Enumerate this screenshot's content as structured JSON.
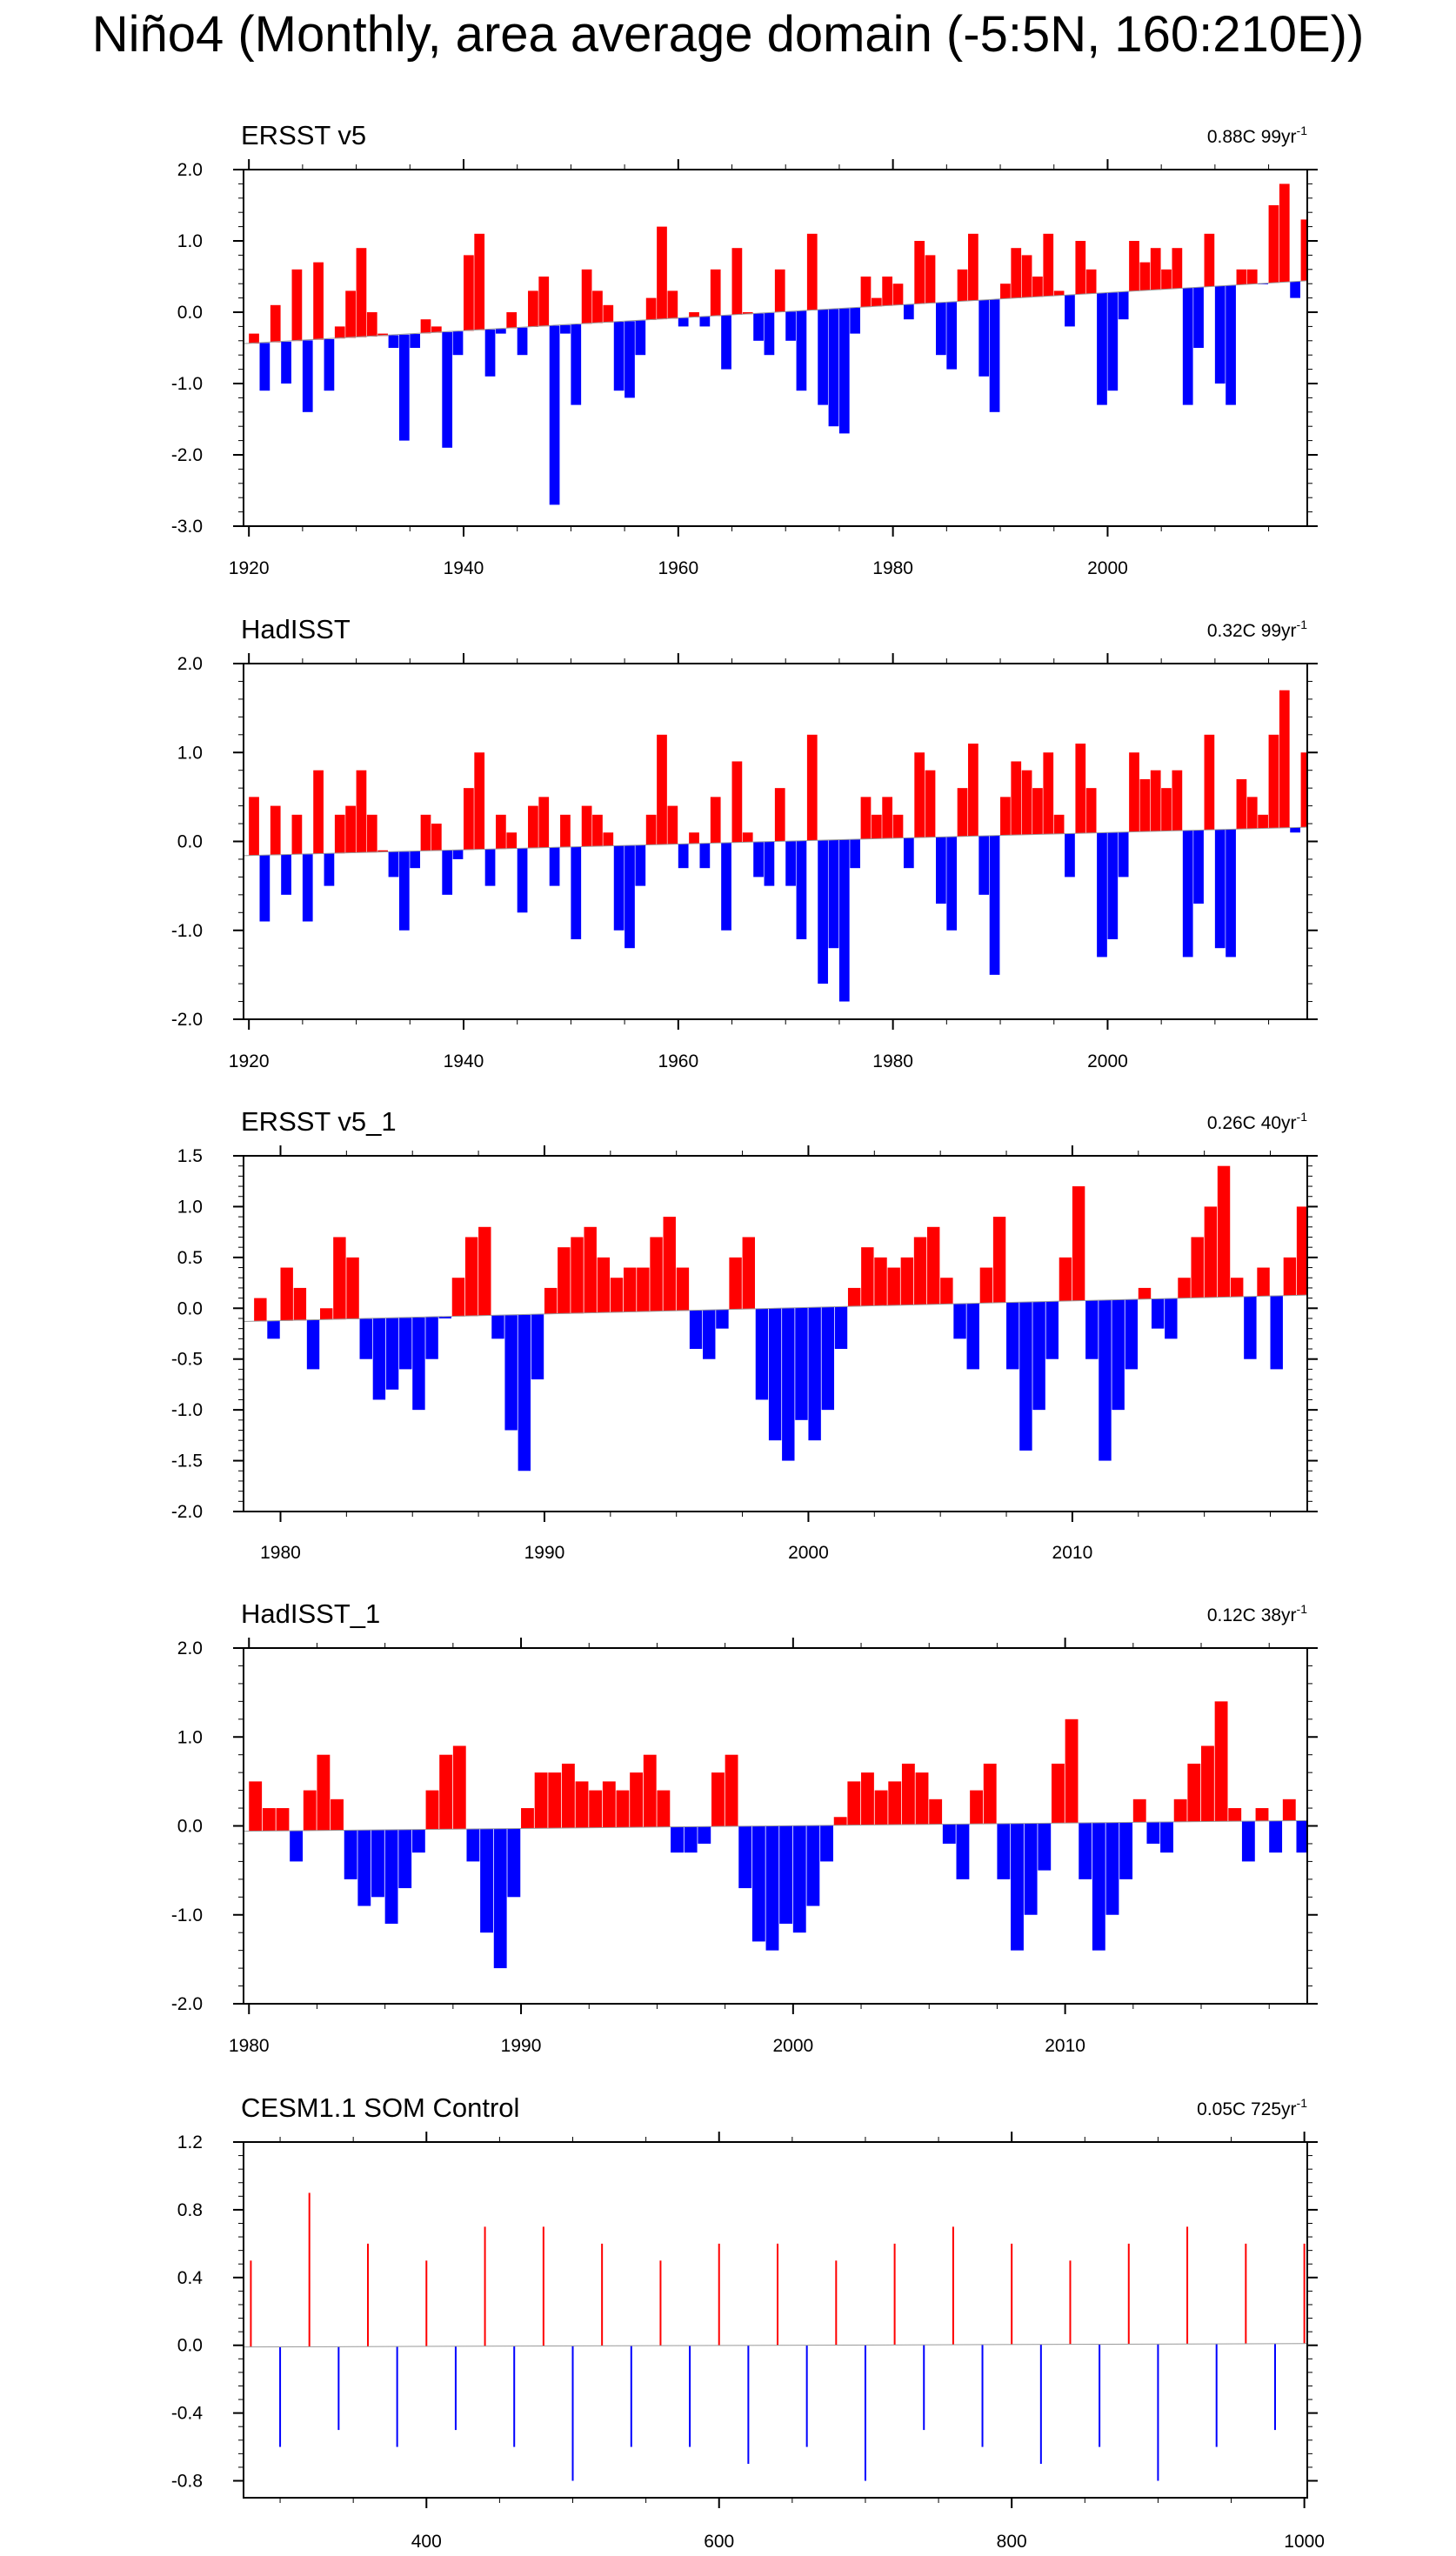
{
  "page": {
    "title": "Niño4 (Monthly, area average domain (-5:5N, 160:210E))"
  },
  "chart_data": [
    {
      "type": "area",
      "title": "ERSST v5",
      "trend_value": "0.88C",
      "trend_period": "99yr",
      "trend_exponent": "-1",
      "xlim": [
        1919.5,
        2018.6
      ],
      "ylim": [
        -3.0,
        2.0
      ],
      "y_ticks": [
        -3.0,
        -2.0,
        -1.0,
        0.0,
        1.0,
        2.0
      ],
      "y_tick_labels": [
        "-3.0",
        "-2.0",
        "-1.0",
        "0.0",
        "1.0",
        "2.0"
      ],
      "x_ticks": [
        1920,
        1940,
        1960,
        1980,
        2000
      ],
      "x_tick_labels": [
        "1920",
        "1940",
        "1960",
        "1980",
        "2000"
      ],
      "trend_line": [
        -0.44,
        0.44
      ],
      "above_color": "#ff0000",
      "below_color": "#0000ff",
      "series": [
        {
          "name": "anomaly",
          "x": [
            1920,
            1921,
            1922,
            1923,
            1924,
            1925,
            1926,
            1927,
            1928,
            1929,
            1930,
            1931,
            1932,
            1933,
            1934,
            1935,
            1936,
            1937,
            1938,
            1939,
            1940,
            1941,
            1942,
            1943,
            1944,
            1945,
            1946,
            1947,
            1948,
            1949,
            1950,
            1951,
            1952,
            1953,
            1954,
            1955,
            1956,
            1957,
            1958,
            1959,
            1960,
            1961,
            1962,
            1963,
            1964,
            1965,
            1966,
            1967,
            1968,
            1969,
            1970,
            1971,
            1972,
            1973,
            1974,
            1975,
            1976,
            1977,
            1978,
            1979,
            1980,
            1981,
            1982,
            1983,
            1984,
            1985,
            1986,
            1987,
            1988,
            1989,
            1990,
            1991,
            1992,
            1993,
            1994,
            1995,
            1996,
            1997,
            1998,
            1999,
            2000,
            2001,
            2002,
            2003,
            2004,
            2005,
            2006,
            2007,
            2008,
            2009,
            2010,
            2011,
            2012,
            2013,
            2014,
            2015,
            2016,
            2017,
            2018
          ],
          "values": [
            -0.3,
            -1.1,
            0.1,
            -1.0,
            0.6,
            -1.4,
            0.7,
            -1.1,
            -0.2,
            0.3,
            0.9,
            0.0,
            -0.3,
            -0.5,
            -1.8,
            -0.5,
            -0.1,
            -0.2,
            -1.9,
            -0.6,
            0.8,
            1.1,
            -0.9,
            -0.3,
            0.0,
            -0.6,
            0.3,
            0.5,
            -2.7,
            -0.3,
            -1.3,
            0.6,
            0.3,
            0.1,
            -1.1,
            -1.2,
            -0.6,
            0.2,
            1.2,
            0.3,
            -0.2,
            0.0,
            -0.2,
            0.6,
            -0.8,
            0.9,
            0.0,
            -0.4,
            -0.6,
            0.6,
            -0.4,
            -1.1,
            1.1,
            -1.3,
            -1.6,
            -1.7,
            -0.3,
            0.5,
            0.2,
            0.5,
            0.4,
            -0.1,
            1.0,
            0.8,
            -0.6,
            -0.8,
            0.6,
            1.1,
            -0.9,
            -1.4,
            0.4,
            0.9,
            0.8,
            0.5,
            1.1,
            0.3,
            -0.2,
            1.0,
            0.6,
            -1.3,
            -1.1,
            -0.1,
            1.0,
            0.7,
            0.9,
            0.6,
            0.9,
            -1.3,
            -0.5,
            1.1,
            -1.0,
            -1.3,
            0.6,
            0.6,
            0.4,
            1.5,
            1.8,
            0.2,
            1.3
          ]
        }
      ]
    },
    {
      "type": "area",
      "title": "HadISST",
      "trend_value": "0.32C",
      "trend_period": "99yr",
      "trend_exponent": "-1",
      "xlim": [
        1919.5,
        2018.6
      ],
      "ylim": [
        -2.0,
        2.0
      ],
      "y_ticks": [
        -2.0,
        -1.0,
        0.0,
        1.0,
        2.0
      ],
      "y_tick_labels": [
        "-2.0",
        "-1.0",
        "0.0",
        "1.0",
        "2.0"
      ],
      "x_ticks": [
        1920,
        1940,
        1960,
        1980,
        2000
      ],
      "x_tick_labels": [
        "1920",
        "1940",
        "1960",
        "1980",
        "2000"
      ],
      "trend_line": [
        -0.16,
        0.16
      ],
      "above_color": "#ff0000",
      "below_color": "#0000ff",
      "series": [
        {
          "name": "anomaly",
          "x": [
            1920,
            1921,
            1922,
            1923,
            1924,
            1925,
            1926,
            1927,
            1928,
            1929,
            1930,
            1931,
            1932,
            1933,
            1934,
            1935,
            1936,
            1937,
            1938,
            1939,
            1940,
            1941,
            1942,
            1943,
            1944,
            1945,
            1946,
            1947,
            1948,
            1949,
            1950,
            1951,
            1952,
            1953,
            1954,
            1955,
            1956,
            1957,
            1958,
            1959,
            1960,
            1961,
            1962,
            1963,
            1964,
            1965,
            1966,
            1967,
            1968,
            1969,
            1970,
            1971,
            1972,
            1973,
            1974,
            1975,
            1976,
            1977,
            1978,
            1979,
            1980,
            1981,
            1982,
            1983,
            1984,
            1985,
            1986,
            1987,
            1988,
            1989,
            1990,
            1991,
            1992,
            1993,
            1994,
            1995,
            1996,
            1997,
            1998,
            1999,
            2000,
            2001,
            2002,
            2003,
            2004,
            2005,
            2006,
            2007,
            2008,
            2009,
            2010,
            2011,
            2012,
            2013,
            2014,
            2015,
            2016,
            2017,
            2018
          ],
          "values": [
            0.5,
            -0.9,
            0.4,
            -0.6,
            0.3,
            -0.9,
            0.8,
            -0.5,
            0.3,
            0.4,
            0.8,
            0.3,
            -0.1,
            -0.4,
            -1.0,
            -0.3,
            0.3,
            0.2,
            -0.6,
            -0.2,
            0.6,
            1.0,
            -0.5,
            0.3,
            0.1,
            -0.8,
            0.4,
            0.5,
            -0.5,
            0.3,
            -1.1,
            0.4,
            0.3,
            0.1,
            -1.0,
            -1.2,
            -0.5,
            0.3,
            1.2,
            0.4,
            -0.3,
            0.1,
            -0.3,
            0.5,
            -1.0,
            0.9,
            0.1,
            -0.4,
            -0.5,
            0.6,
            -0.5,
            -1.1,
            1.2,
            -1.6,
            -1.2,
            -1.8,
            -0.3,
            0.5,
            0.3,
            0.5,
            0.3,
            -0.3,
            1.0,
            0.8,
            -0.7,
            -1.0,
            0.6,
            1.1,
            -0.6,
            -1.5,
            0.5,
            0.9,
            0.8,
            0.6,
            1.0,
            0.3,
            -0.4,
            1.1,
            0.6,
            -1.3,
            -1.1,
            -0.4,
            1.0,
            0.7,
            0.8,
            0.6,
            0.8,
            -1.3,
            -0.7,
            1.2,
            -1.2,
            -1.3,
            0.7,
            0.5,
            0.3,
            1.2,
            1.7,
            0.1,
            1.0
          ]
        }
      ]
    },
    {
      "type": "area",
      "title": "ERSST v5_1",
      "trend_value": "0.26C",
      "trend_period": "40yr",
      "trend_exponent": "-1",
      "xlim": [
        1978.6,
        2018.9
      ],
      "ylim": [
        -2.0,
        1.5
      ],
      "y_ticks": [
        -2.0,
        -1.5,
        -1.0,
        -0.5,
        0.0,
        0.5,
        1.0,
        1.5
      ],
      "y_tick_labels": [
        "-2.0",
        "-1.5",
        "-1.0",
        "-0.5",
        "0.0",
        "0.5",
        "1.0",
        "1.5"
      ],
      "x_ticks": [
        1980,
        1990,
        2000,
        2010
      ],
      "x_tick_labels": [
        "1980",
        "1990",
        "2000",
        "2010"
      ],
      "trend_line": [
        -0.13,
        0.13
      ],
      "above_color": "#ff0000",
      "below_color": "#0000ff",
      "series": [
        {
          "name": "anomaly",
          "x": [
            1979.0,
            1979.5,
            1980.0,
            1980.5,
            1981.0,
            1981.5,
            1982.0,
            1982.5,
            1983.0,
            1983.5,
            1984.0,
            1984.5,
            1985.0,
            1985.5,
            1986.0,
            1986.5,
            1987.0,
            1987.5,
            1988.0,
            1988.5,
            1989.0,
            1989.5,
            1990.0,
            1990.5,
            1991.0,
            1991.5,
            1992.0,
            1992.5,
            1993.0,
            1993.5,
            1994.0,
            1994.5,
            1995.0,
            1995.5,
            1996.0,
            1996.5,
            1997.0,
            1997.5,
            1998.0,
            1998.5,
            1999.0,
            1999.5,
            2000.0,
            2000.5,
            2001.0,
            2001.5,
            2002.0,
            2002.5,
            2003.0,
            2003.5,
            2004.0,
            2004.5,
            2005.0,
            2005.5,
            2006.0,
            2006.5,
            2007.0,
            2007.5,
            2008.0,
            2008.5,
            2009.0,
            2009.5,
            2010.0,
            2010.5,
            2011.0,
            2011.5,
            2012.0,
            2012.5,
            2013.0,
            2013.5,
            2014.0,
            2014.5,
            2015.0,
            2015.5,
            2016.0,
            2016.5,
            2017.0,
            2017.5,
            2018.0,
            2018.5
          ],
          "values": [
            0.1,
            -0.3,
            0.4,
            0.2,
            -0.6,
            0.0,
            0.7,
            0.5,
            -0.5,
            -0.9,
            -0.8,
            -0.6,
            -1.0,
            -0.5,
            -0.1,
            0.3,
            0.7,
            0.8,
            -0.3,
            -1.2,
            -1.6,
            -0.7,
            0.2,
            0.6,
            0.7,
            0.8,
            0.5,
            0.3,
            0.4,
            0.4,
            0.7,
            0.9,
            0.4,
            -0.4,
            -0.5,
            -0.2,
            0.5,
            0.7,
            -0.9,
            -1.3,
            -1.5,
            -1.1,
            -1.3,
            -1.0,
            -0.4,
            0.2,
            0.6,
            0.5,
            0.4,
            0.5,
            0.7,
            0.8,
            0.3,
            -0.3,
            -0.6,
            0.4,
            0.9,
            -0.6,
            -1.4,
            -1.0,
            -0.5,
            0.5,
            1.2,
            -0.5,
            -1.5,
            -1.0,
            -0.6,
            0.2,
            -0.2,
            -0.3,
            0.3,
            0.7,
            1.0,
            1.4,
            0.3,
            -0.5,
            0.4,
            -0.6,
            0.5,
            1.0
          ]
        }
      ]
    },
    {
      "type": "area",
      "title": "HadISST_1",
      "trend_value": "0.12C",
      "trend_period": "38yr",
      "trend_exponent": "-1",
      "xlim": [
        1979.8,
        2018.9
      ],
      "ylim": [
        -2.0,
        2.0
      ],
      "y_ticks": [
        -2.0,
        -1.0,
        0.0,
        1.0,
        2.0
      ],
      "y_tick_labels": [
        "-2.0",
        "-1.0",
        "0.0",
        "1.0",
        "2.0"
      ],
      "x_ticks": [
        1980,
        1990,
        2000,
        2010
      ],
      "x_tick_labels": [
        "1980",
        "1990",
        "2000",
        "2010"
      ],
      "trend_line": [
        -0.06,
        0.06
      ],
      "above_color": "#ff0000",
      "below_color": "#0000ff",
      "series": [
        {
          "name": "anomaly",
          "x": [
            1980.0,
            1980.5,
            1981.0,
            1981.5,
            1982.0,
            1982.5,
            1983.0,
            1983.5,
            1984.0,
            1984.5,
            1985.0,
            1985.5,
            1986.0,
            1986.5,
            1987.0,
            1987.5,
            1988.0,
            1988.5,
            1989.0,
            1989.5,
            1990.0,
            1990.5,
            1991.0,
            1991.5,
            1992.0,
            1992.5,
            1993.0,
            1993.5,
            1994.0,
            1994.5,
            1995.0,
            1995.5,
            1996.0,
            1996.5,
            1997.0,
            1997.5,
            1998.0,
            1998.5,
            1999.0,
            1999.5,
            2000.0,
            2000.5,
            2001.0,
            2001.5,
            2002.0,
            2002.5,
            2003.0,
            2003.5,
            2004.0,
            2004.5,
            2005.0,
            2005.5,
            2006.0,
            2006.5,
            2007.0,
            2007.5,
            2008.0,
            2008.5,
            2009.0,
            2009.5,
            2010.0,
            2010.5,
            2011.0,
            2011.5,
            2012.0,
            2012.5,
            2013.0,
            2013.5,
            2014.0,
            2014.5,
            2015.0,
            2015.5,
            2016.0,
            2016.5,
            2017.0,
            2017.5,
            2018.0,
            2018.5
          ],
          "values": [
            0.5,
            0.2,
            0.2,
            -0.4,
            0.4,
            0.8,
            0.3,
            -0.6,
            -0.9,
            -0.8,
            -1.1,
            -0.7,
            -0.3,
            0.4,
            0.8,
            0.9,
            -0.4,
            -1.2,
            -1.6,
            -0.8,
            0.2,
            0.6,
            0.6,
            0.7,
            0.5,
            0.4,
            0.5,
            0.4,
            0.6,
            0.8,
            0.4,
            -0.3,
            -0.3,
            -0.2,
            0.6,
            0.8,
            -0.7,
            -1.3,
            -1.4,
            -1.1,
            -1.2,
            -0.9,
            -0.4,
            0.1,
            0.5,
            0.6,
            0.4,
            0.5,
            0.7,
            0.6,
            0.3,
            -0.2,
            -0.6,
            0.4,
            0.7,
            -0.6,
            -1.4,
            -1.0,
            -0.5,
            0.7,
            1.2,
            -0.6,
            -1.4,
            -1.0,
            -0.6,
            0.3,
            -0.2,
            -0.3,
            0.3,
            0.7,
            0.9,
            1.4,
            0.2,
            -0.4,
            0.2,
            -0.3,
            0.3,
            -0.3
          ]
        }
      ]
    },
    {
      "type": "area",
      "title": "CESM1.1 SOM Control",
      "trend_value": "0.05C",
      "trend_period": "725yr",
      "trend_exponent": "-1",
      "xlim": [
        275,
        1002
      ],
      "ylim": [
        -0.9,
        1.2
      ],
      "y_ticks": [
        -0.8,
        -0.4,
        0.0,
        0.4,
        0.8,
        1.2
      ],
      "y_tick_labels": [
        "-0.8",
        "-0.4",
        "0.0",
        "0.4",
        "0.8",
        "1.2"
      ],
      "x_ticks": [
        400,
        600,
        800,
        1000
      ],
      "x_tick_labels": [
        "400",
        "600",
        "800",
        "1000"
      ],
      "trend_line": [
        -0.01,
        0.01
      ],
      "above_color": "#ff0000",
      "below_color": "#0000ff",
      "series": [
        {
          "name": "anomaly",
          "x": [
            280,
            300,
            320,
            340,
            360,
            380,
            400,
            420,
            440,
            460,
            480,
            500,
            520,
            540,
            560,
            580,
            600,
            620,
            640,
            660,
            680,
            700,
            720,
            740,
            760,
            780,
            800,
            820,
            840,
            860,
            880,
            900,
            920,
            940,
            960,
            980,
            1000
          ],
          "values": [
            0.5,
            -0.6,
            0.9,
            -0.5,
            0.6,
            -0.6,
            0.5,
            -0.5,
            0.7,
            -0.6,
            0.7,
            -0.8,
            0.6,
            -0.6,
            0.5,
            -0.6,
            0.6,
            -0.7,
            0.6,
            -0.6,
            0.5,
            -0.8,
            0.6,
            -0.5,
            0.7,
            -0.6,
            0.6,
            -0.7,
            0.5,
            -0.6,
            0.6,
            -0.8,
            0.7,
            -0.6,
            0.6,
            -0.5,
            0.6
          ]
        }
      ]
    }
  ]
}
